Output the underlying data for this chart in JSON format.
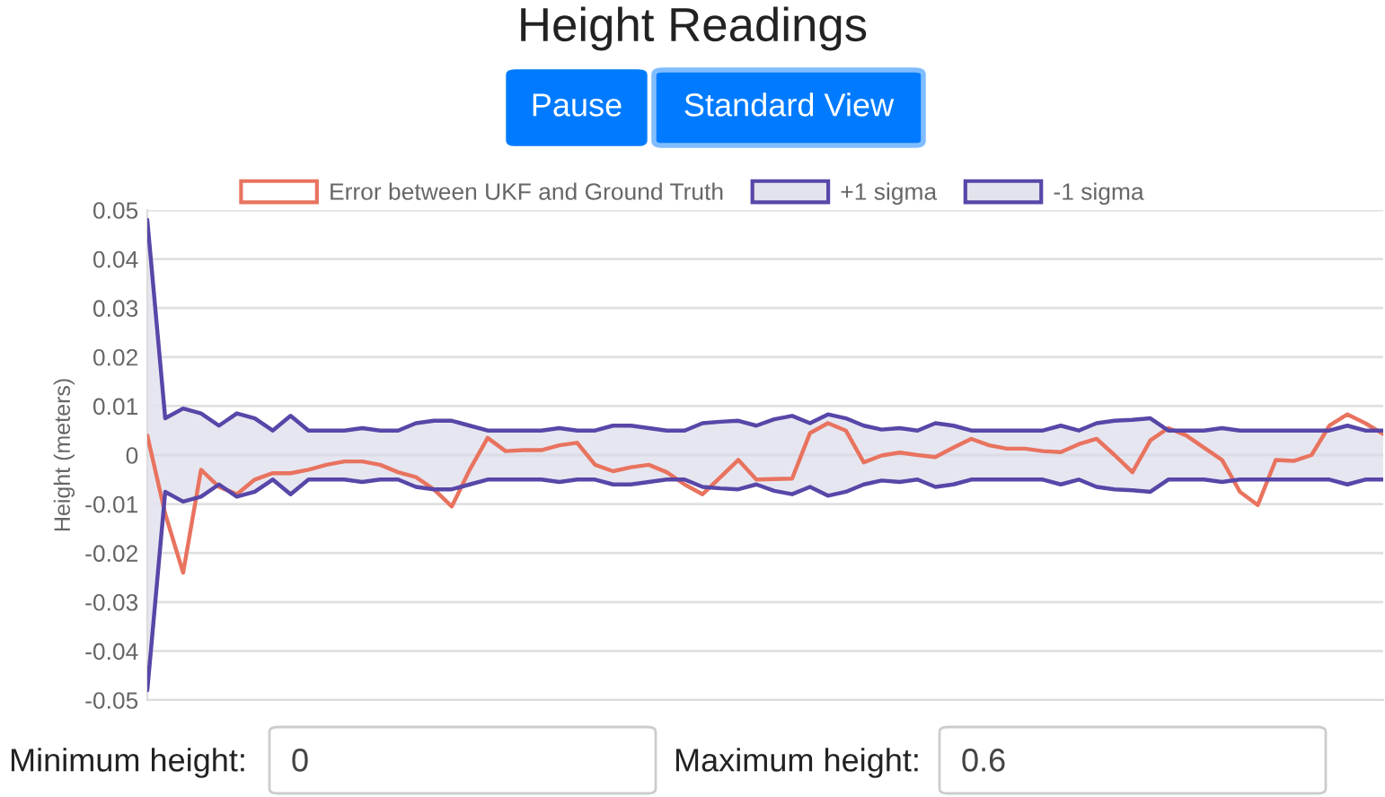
{
  "chart_data": {
    "type": "line",
    "title": "Height Readings",
    "ylabel": "Height (meters)",
    "categories": [
      null,
      null,
      null,
      null,
      null,
      null,
      null,
      null,
      null,
      null,
      null,
      null,
      null,
      null,
      null,
      null,
      null,
      null,
      null,
      null,
      null,
      null,
      null,
      null,
      null,
      null,
      null,
      null,
      null,
      null,
      null,
      null,
      null,
      null,
      null,
      null,
      null,
      null,
      null,
      null,
      null,
      null,
      null,
      null,
      null,
      null,
      null,
      null,
      null,
      null,
      null,
      null,
      null,
      null,
      null,
      null,
      null,
      null,
      null,
      null,
      null,
      null,
      null,
      null,
      null,
      null,
      null,
      null,
      null,
      null
    ],
    "series": [
      {
        "name": "Error between UKF and Ground Truth",
        "color": "#e8735f",
        "values": [
          0.004,
          -0.012,
          -0.024,
          -0.003,
          -0.0065,
          -0.008,
          -0.005,
          -0.0037,
          -0.0037,
          -0.003,
          -0.002,
          -0.0013,
          -0.0013,
          -0.002,
          -0.0035,
          -0.0045,
          -0.007,
          -0.0105,
          -0.003,
          0.0035,
          0.0008,
          0.001,
          0.001,
          0.002,
          0.0025,
          -0.002,
          -0.0033,
          -0.0025,
          -0.002,
          -0.0035,
          -0.006,
          -0.008,
          -0.0045,
          -0.001,
          -0.005,
          -0.0049,
          -0.0048,
          0.0045,
          0.0065,
          0.005,
          -0.0015,
          -0.0001,
          0.0005,
          0.0,
          -0.0004,
          0.0015,
          0.0033,
          0.002,
          0.0013,
          0.0013,
          0.0008,
          0.0006,
          0.0022,
          0.0033,
          0.0,
          -0.0035,
          0.003,
          0.0055,
          0.004,
          0.0015,
          -0.001,
          -0.0075,
          -0.0102,
          -0.001,
          -0.0012,
          0.0,
          0.006,
          0.0083,
          0.0065,
          0.0043
        ]
      },
      {
        "name": "+1 sigma",
        "type": "area",
        "color": "#5846a8",
        "values": [
          0.048,
          0.0075,
          0.0095,
          0.0085,
          0.006,
          0.0085,
          0.0075,
          0.005,
          0.008,
          0.005,
          0.005,
          0.005,
          0.0055,
          0.005,
          0.005,
          0.0065,
          0.007,
          0.007,
          0.006,
          0.005,
          0.005,
          0.005,
          0.005,
          0.0055,
          0.005,
          0.005,
          0.006,
          0.006,
          0.0055,
          0.005,
          0.005,
          0.0065,
          0.0068,
          0.007,
          0.006,
          0.0073,
          0.008,
          0.0065,
          0.0083,
          0.0075,
          0.006,
          0.0052,
          0.0055,
          0.005,
          0.0065,
          0.006,
          0.005,
          0.005,
          0.005,
          0.005,
          0.005,
          0.006,
          0.005,
          0.0065,
          0.007,
          0.0072,
          0.0075,
          0.005,
          0.005,
          0.005,
          0.0055,
          0.005,
          0.005,
          0.005,
          0.005,
          0.005,
          0.005,
          0.006,
          0.005,
          0.005
        ]
      },
      {
        "name": "-1 sigma",
        "type": "area",
        "color": "#5846a8",
        "values": [
          -0.048,
          -0.0075,
          -0.0095,
          -0.0085,
          -0.006,
          -0.0085,
          -0.0075,
          -0.005,
          -0.008,
          -0.005,
          -0.005,
          -0.005,
          -0.0055,
          -0.005,
          -0.005,
          -0.0065,
          -0.007,
          -0.007,
          -0.006,
          -0.005,
          -0.005,
          -0.005,
          -0.005,
          -0.0055,
          -0.005,
          -0.005,
          -0.006,
          -0.006,
          -0.0055,
          -0.005,
          -0.005,
          -0.0065,
          -0.0068,
          -0.007,
          -0.006,
          -0.0073,
          -0.008,
          -0.0065,
          -0.0083,
          -0.0075,
          -0.006,
          -0.0052,
          -0.0055,
          -0.005,
          -0.0065,
          -0.006,
          -0.005,
          -0.005,
          -0.005,
          -0.005,
          -0.005,
          -0.006,
          -0.005,
          -0.0065,
          -0.007,
          -0.0072,
          -0.0075,
          -0.005,
          -0.005,
          -0.005,
          -0.0055,
          -0.005,
          -0.005,
          -0.005,
          -0.005,
          -0.005,
          -0.005,
          -0.006,
          -0.005,
          -0.005
        ]
      }
    ],
    "ylim": [
      -0.05,
      0.05
    ],
    "yticks": [
      -0.05,
      -0.04,
      -0.03,
      -0.02,
      -0.01,
      0,
      0.01,
      0.02,
      0.03,
      0.04,
      0.05
    ],
    "grid": "y",
    "legend": "top",
    "tick_labels": "y",
    "marker": "none",
    "line_style": "solid",
    "annotations": [
      "Pause",
      "Standard View",
      "Minimum height:",
      "0",
      "Maximum height:",
      "0.6"
    ]
  }
}
